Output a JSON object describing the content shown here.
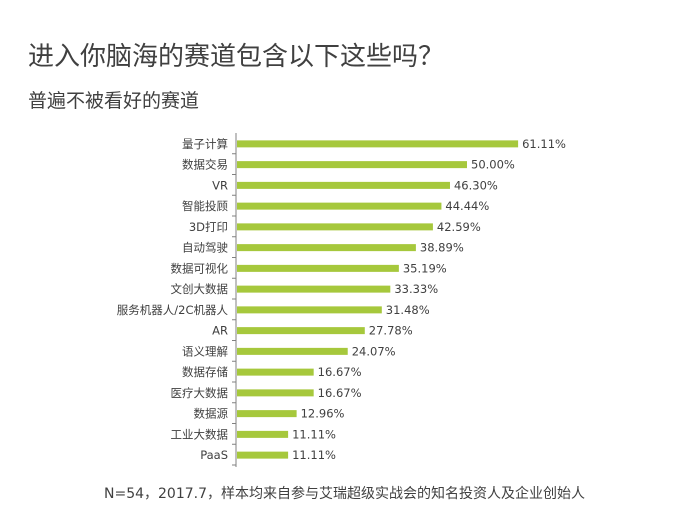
{
  "header": {
    "title": "进入你脑海的赛道包含以下这些吗？",
    "subtitle": "普遍不被看好的赛道"
  },
  "footnote": "N=54，2017.7，样本均来自参与艾瑞超级实战会的知名投资人及企业创始人",
  "colors": {
    "bar": "#a6c83c",
    "axis": "#808080",
    "text": "#404040"
  },
  "chart_data": {
    "type": "bar",
    "orientation": "horizontal",
    "categories": [
      "量子计算",
      "数据交易",
      "VR",
      "智能投顾",
      "3D打印",
      "自动驾驶",
      "数据可视化",
      "文创大数据",
      "服务机器人/2C机器人",
      "AR",
      "语义理解",
      "数据存储",
      "医疗大数据",
      "数据源",
      "工业大数据",
      "PaaS"
    ],
    "values": [
      61.11,
      50.0,
      46.3,
      44.44,
      42.59,
      38.89,
      35.19,
      33.33,
      31.48,
      27.78,
      24.07,
      16.67,
      16.67,
      12.96,
      11.11,
      11.11
    ],
    "value_labels": [
      "61.11%",
      "50.00%",
      "46.30%",
      "44.44%",
      "42.59%",
      "38.89%",
      "35.19%",
      "33.33%",
      "31.48%",
      "27.78%",
      "24.07%",
      "16.67%",
      "16.67%",
      "12.96%",
      "11.11%",
      "11.11%"
    ],
    "unit": "%",
    "xlim": [
      0,
      70
    ],
    "grid": false,
    "legend": "none"
  }
}
